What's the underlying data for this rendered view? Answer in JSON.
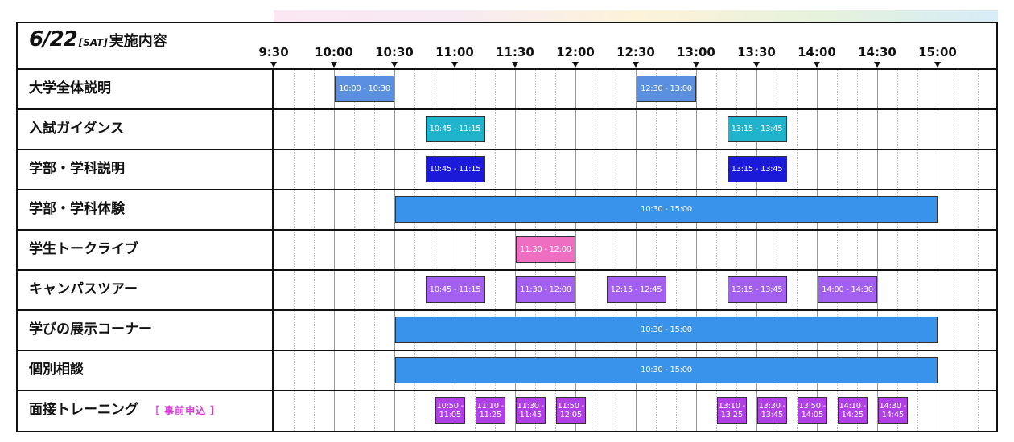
{
  "header": {
    "date": "6/22",
    "dow": "[SAT]",
    "label": "実施内容"
  },
  "timeline": {
    "labels": [
      "9:30",
      "10:00",
      "10:30",
      "11:00",
      "11:30",
      "12:00",
      "12:30",
      "13:00",
      "13:30",
      "14:00",
      "14:30",
      "15:00"
    ]
  },
  "colors": {
    "blue": "#5b8fe0",
    "cyan": "#20b3cc",
    "navy": "#1a1ad8",
    "sky": "#3a93ea",
    "pink": "#ee6fc2",
    "purple": "#a35ff0",
    "magenta": "#b13fe6"
  },
  "rows": [
    {
      "label": "大学全体説明",
      "blocks": [
        {
          "start": "10:00",
          "end": "10:30",
          "text": "10:00 - 10:30",
          "color": "blue"
        },
        {
          "start": "12:30",
          "end": "13:00",
          "text": "12:30 - 13:00",
          "color": "blue"
        }
      ]
    },
    {
      "label": "入試ガイダンス",
      "blocks": [
        {
          "start": "10:45",
          "end": "11:15",
          "text": "10:45 - 11:15",
          "color": "cyan"
        },
        {
          "start": "13:15",
          "end": "13:45",
          "text": "13:15 - 13:45",
          "color": "cyan"
        }
      ]
    },
    {
      "label": "学部・学科説明",
      "blocks": [
        {
          "start": "10:45",
          "end": "11:15",
          "text": "10:45 - 11:15",
          "color": "navy"
        },
        {
          "start": "13:15",
          "end": "13:45",
          "text": "13:15 - 13:45",
          "color": "navy"
        }
      ]
    },
    {
      "label": "学部・学科体験",
      "blocks": [
        {
          "start": "10:30",
          "end": "15:00",
          "text": "10:30 - 15:00",
          "color": "sky"
        }
      ]
    },
    {
      "label": "学生トークライブ",
      "blocks": [
        {
          "start": "11:30",
          "end": "12:00",
          "text": "11:30 - 12:00",
          "color": "pink"
        }
      ]
    },
    {
      "label": "キャンパスツアー",
      "blocks": [
        {
          "start": "10:45",
          "end": "11:15",
          "text": "10:45 - 11:15",
          "color": "purple"
        },
        {
          "start": "11:30",
          "end": "12:00",
          "text": "11:30 - 12:00",
          "color": "purple"
        },
        {
          "start": "12:15",
          "end": "12:45",
          "text": "12:15 - 12:45",
          "color": "purple"
        },
        {
          "start": "13:15",
          "end": "13:45",
          "text": "13:15 - 13:45",
          "color": "purple"
        },
        {
          "start": "14:00",
          "end": "14:30",
          "text": "14:00 - 14:30",
          "color": "purple"
        }
      ]
    },
    {
      "label": "学びの展示コーナー",
      "blocks": [
        {
          "start": "10:30",
          "end": "15:00",
          "text": "10:30 - 15:00",
          "color": "sky"
        }
      ]
    },
    {
      "label": "個別相談",
      "blocks": [
        {
          "start": "10:30",
          "end": "15:00",
          "text": "10:30 - 15:00",
          "color": "sky"
        }
      ]
    },
    {
      "label": "面接トレーニング",
      "note": "［ 事前申込 ］",
      "blocks": [
        {
          "start": "10:50",
          "end": "11:05",
          "text": "10:50 -\n11:05",
          "color": "magenta"
        },
        {
          "start": "11:10",
          "end": "11:25",
          "text": "11:10 -\n11:25",
          "color": "magenta"
        },
        {
          "start": "11:30",
          "end": "11:45",
          "text": "11:30 -\n11:45",
          "color": "magenta"
        },
        {
          "start": "11:50",
          "end": "12:05",
          "text": "11:50 -\n12:05",
          "color": "magenta"
        },
        {
          "start": "13:10",
          "end": "13:25",
          "text": "13:10 -\n13:25",
          "color": "magenta"
        },
        {
          "start": "13:30",
          "end": "13:45",
          "text": "13:30 -\n13:45",
          "color": "magenta"
        },
        {
          "start": "13:50",
          "end": "14:05",
          "text": "13:50 -\n14:05",
          "color": "magenta"
        },
        {
          "start": "14:10",
          "end": "14:25",
          "text": "14:10 -\n14:25",
          "color": "magenta"
        },
        {
          "start": "14:30",
          "end": "14:45",
          "text": "14:30 -\n14:45",
          "color": "magenta"
        }
      ]
    }
  ]
}
